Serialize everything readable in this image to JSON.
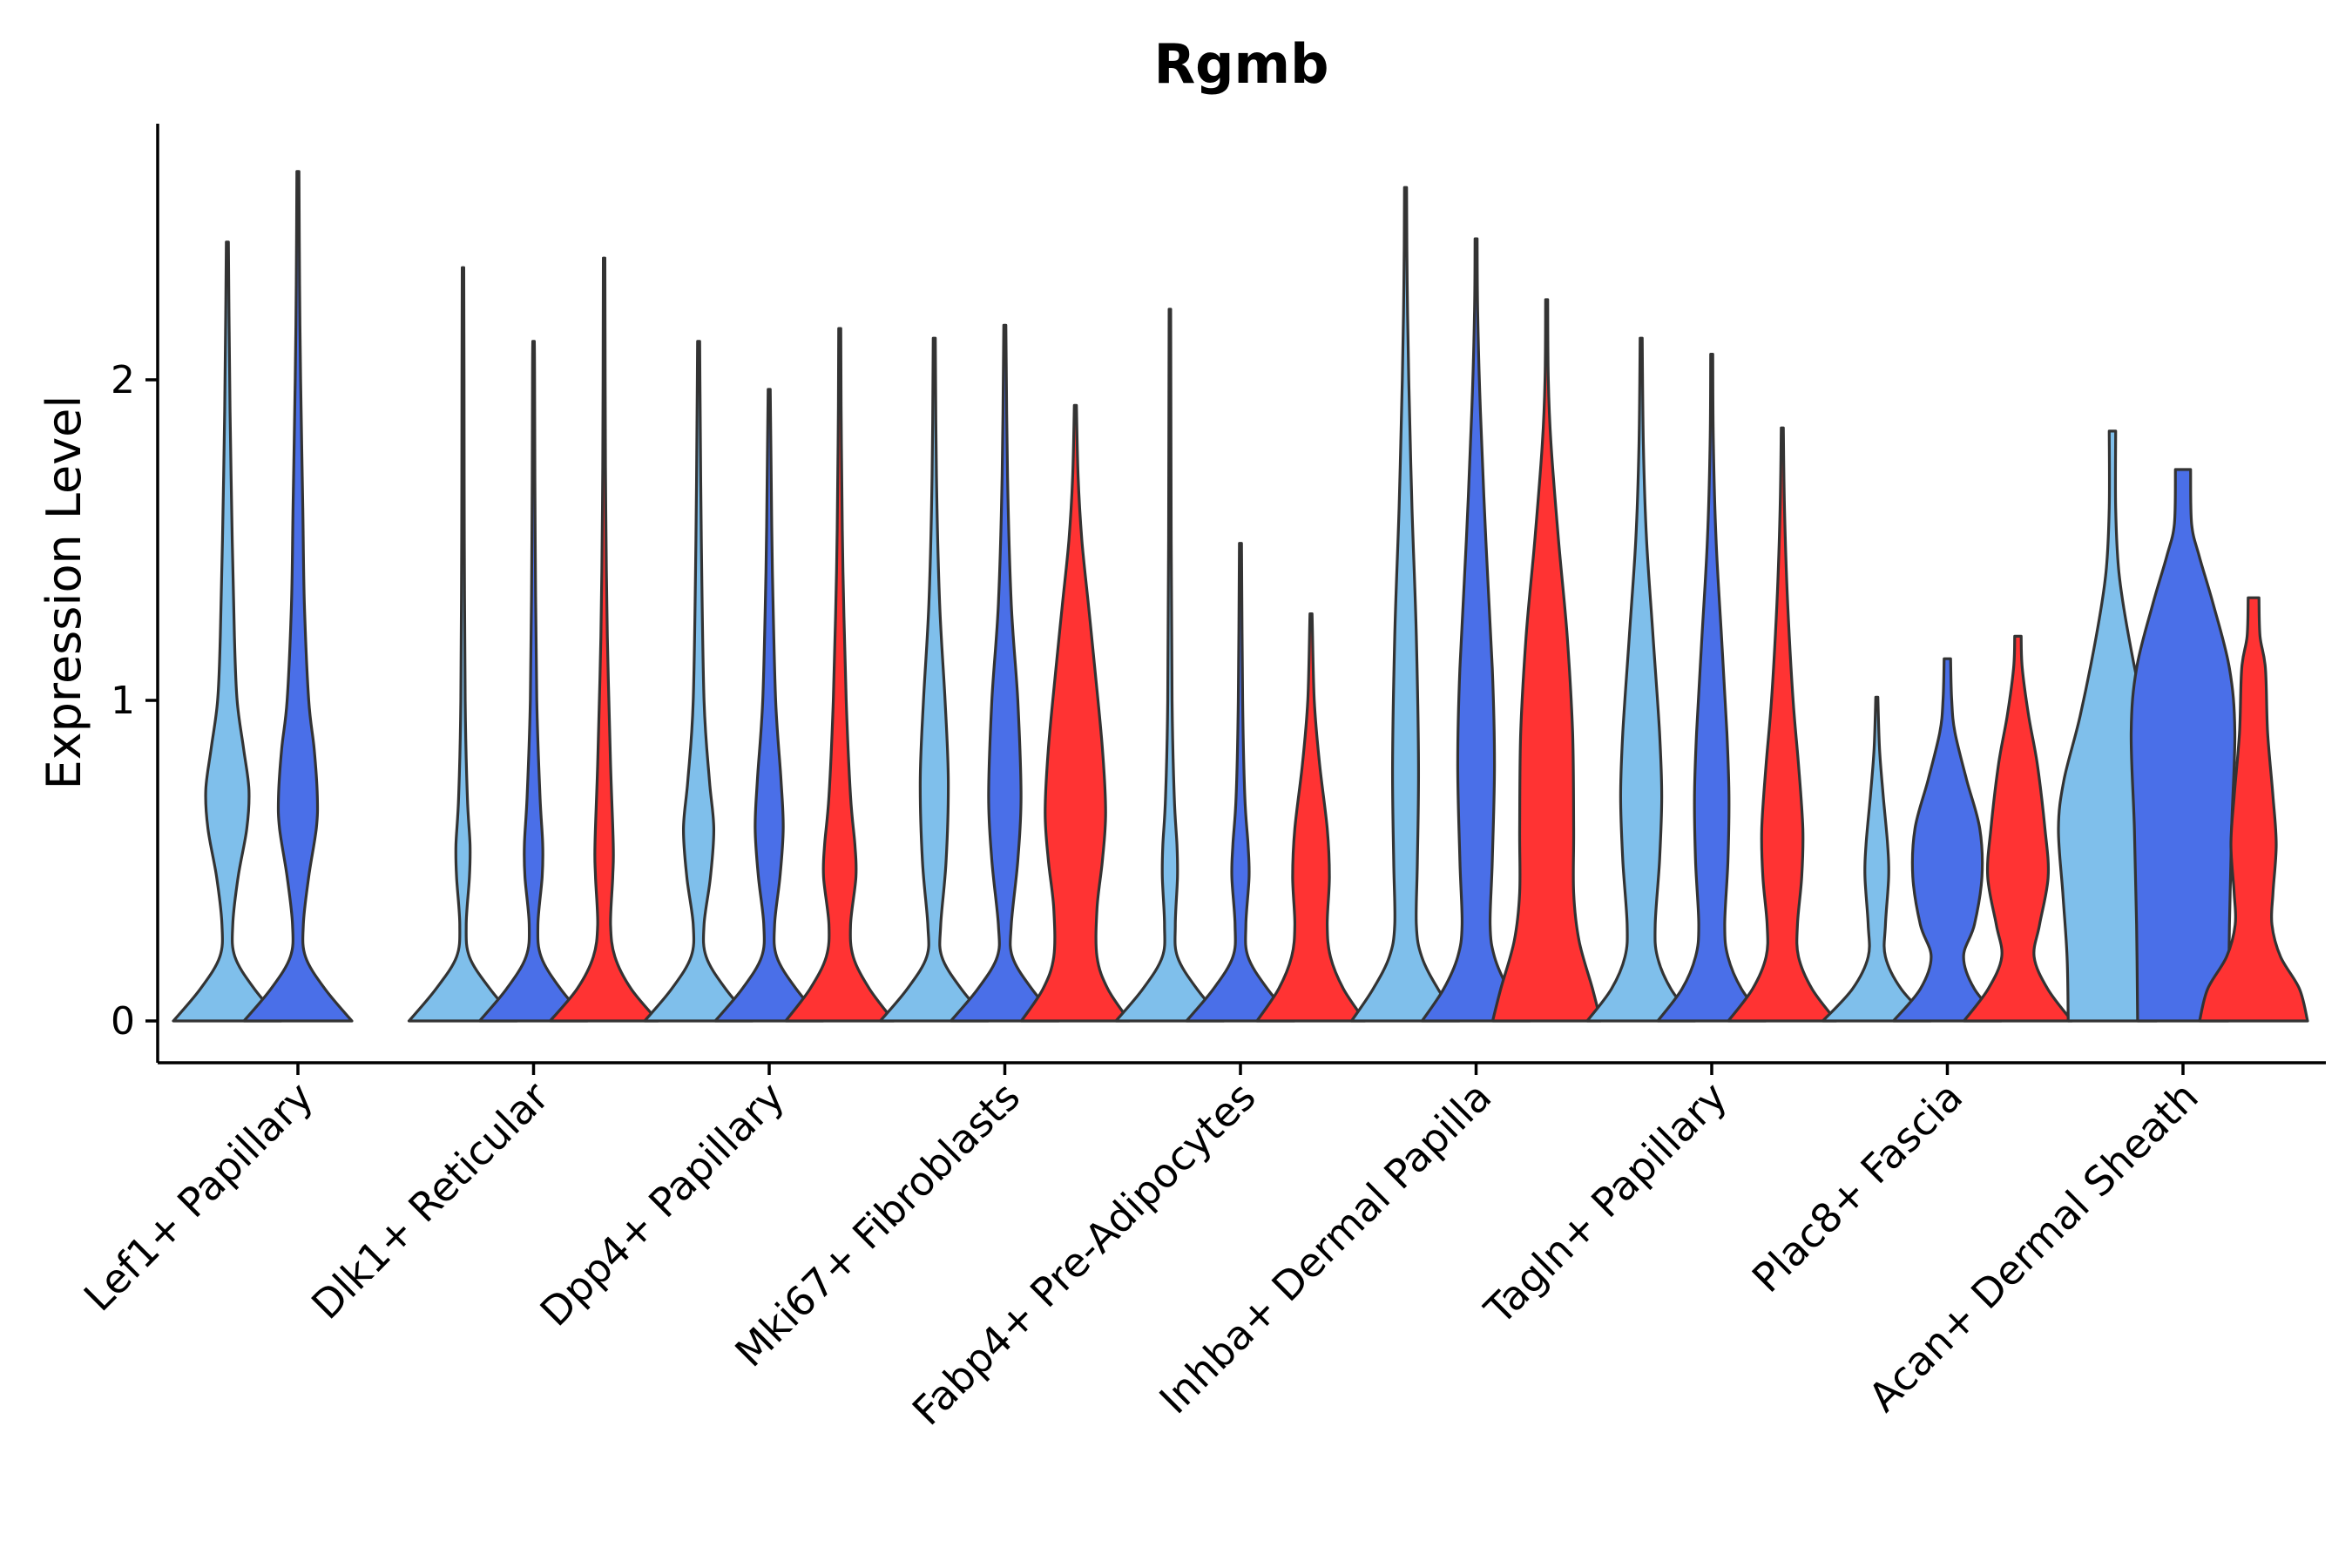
{
  "chart_data": {
    "type": "violin",
    "title": "Rgmb",
    "xlabel": "",
    "ylabel": "Expression Level",
    "ylim": [
      -0.13,
      2.8
    ],
    "yticks": [
      0,
      1,
      2
    ],
    "grid": false,
    "legend": "none",
    "groups": [
      "group1",
      "group2",
      "group3"
    ],
    "group_colors": [
      "#7fbfeb",
      "#4a6fe8",
      "#ff3333"
    ],
    "categories": [
      "Lef1+ Papillary",
      "Dlk1+ Reticular",
      "Dpp4+ Papillary",
      "Mki67+ Fibroblasts",
      "Fabp4+ Pre-Adipocytes",
      "Inhba+ Dermal Papilla",
      "Tagln+ Papillary",
      "Plac8+ Fascia",
      "Acan+ Dermal Sheath"
    ],
    "violins": [
      {
        "category": 0,
        "group": 0,
        "max": 2.43,
        "profile": [
          [
            0,
            1
          ],
          [
            0.1,
            0.5
          ],
          [
            0.2,
            0.14
          ],
          [
            0.3,
            0.1
          ],
          [
            0.45,
            0.2
          ],
          [
            0.6,
            0.36
          ],
          [
            0.72,
            0.4
          ],
          [
            0.85,
            0.3
          ],
          [
            1.0,
            0.18
          ],
          [
            1.2,
            0.13
          ],
          [
            1.5,
            0.09
          ],
          [
            1.9,
            0.05
          ],
          [
            2.2,
            0.03
          ],
          [
            2.43,
            0.02
          ]
        ]
      },
      {
        "category": 0,
        "group": 1,
        "max": 2.65,
        "profile": [
          [
            0,
            1
          ],
          [
            0.1,
            0.5
          ],
          [
            0.2,
            0.14
          ],
          [
            0.3,
            0.1
          ],
          [
            0.45,
            0.2
          ],
          [
            0.6,
            0.34
          ],
          [
            0.7,
            0.36
          ],
          [
            0.85,
            0.3
          ],
          [
            1.0,
            0.2
          ],
          [
            1.3,
            0.12
          ],
          [
            1.6,
            0.09
          ],
          [
            2.0,
            0.05
          ],
          [
            2.3,
            0.03
          ],
          [
            2.65,
            0.02
          ]
        ]
      },
      {
        "category": 1,
        "group": 0,
        "max": 2.35,
        "profile": [
          [
            0,
            1
          ],
          [
            0.1,
            0.5
          ],
          [
            0.2,
            0.12
          ],
          [
            0.3,
            0.06
          ],
          [
            0.45,
            0.12
          ],
          [
            0.55,
            0.13
          ],
          [
            0.7,
            0.08
          ],
          [
            1.0,
            0.04
          ],
          [
            1.5,
            0.025
          ],
          [
            2.0,
            0.02
          ],
          [
            2.35,
            0.015
          ]
        ]
      },
      {
        "category": 1,
        "group": 1,
        "max": 2.12,
        "profile": [
          [
            0,
            1
          ],
          [
            0.1,
            0.5
          ],
          [
            0.2,
            0.14
          ],
          [
            0.3,
            0.08
          ],
          [
            0.45,
            0.16
          ],
          [
            0.55,
            0.17
          ],
          [
            0.7,
            0.12
          ],
          [
            1.0,
            0.06
          ],
          [
            1.5,
            0.03
          ],
          [
            2.0,
            0.02
          ],
          [
            2.12,
            0.015
          ]
        ]
      },
      {
        "category": 1,
        "group": 2,
        "max": 2.38,
        "profile": [
          [
            0,
            1
          ],
          [
            0.1,
            0.5
          ],
          [
            0.2,
            0.2
          ],
          [
            0.3,
            0.12
          ],
          [
            0.45,
            0.16
          ],
          [
            0.55,
            0.17
          ],
          [
            0.8,
            0.12
          ],
          [
            1.2,
            0.06
          ],
          [
            1.6,
            0.03
          ],
          [
            2.0,
            0.02
          ],
          [
            2.38,
            0.015
          ]
        ]
      },
      {
        "category": 2,
        "group": 0,
        "max": 2.12,
        "profile": [
          [
            0,
            1
          ],
          [
            0.1,
            0.5
          ],
          [
            0.2,
            0.14
          ],
          [
            0.3,
            0.1
          ],
          [
            0.45,
            0.22
          ],
          [
            0.6,
            0.28
          ],
          [
            0.75,
            0.2
          ],
          [
            1.0,
            0.1
          ],
          [
            1.5,
            0.05
          ],
          [
            2.0,
            0.025
          ],
          [
            2.12,
            0.02
          ]
        ]
      },
      {
        "category": 2,
        "group": 1,
        "max": 1.97,
        "profile": [
          [
            0,
            1
          ],
          [
            0.1,
            0.5
          ],
          [
            0.2,
            0.14
          ],
          [
            0.3,
            0.1
          ],
          [
            0.45,
            0.2
          ],
          [
            0.6,
            0.26
          ],
          [
            0.75,
            0.22
          ],
          [
            1.0,
            0.12
          ],
          [
            1.4,
            0.06
          ],
          [
            1.8,
            0.03
          ],
          [
            1.97,
            0.02
          ]
        ]
      },
      {
        "category": 2,
        "group": 2,
        "max": 2.16,
        "profile": [
          [
            0,
            1
          ],
          [
            0.1,
            0.55
          ],
          [
            0.2,
            0.25
          ],
          [
            0.3,
            0.2
          ],
          [
            0.45,
            0.3
          ],
          [
            0.55,
            0.28
          ],
          [
            0.7,
            0.2
          ],
          [
            1.0,
            0.12
          ],
          [
            1.4,
            0.06
          ],
          [
            1.8,
            0.03
          ],
          [
            2.16,
            0.02
          ]
        ]
      },
      {
        "category": 3,
        "group": 0,
        "max": 2.13,
        "profile": [
          [
            0,
            1
          ],
          [
            0.1,
            0.5
          ],
          [
            0.2,
            0.14
          ],
          [
            0.3,
            0.12
          ],
          [
            0.5,
            0.22
          ],
          [
            0.75,
            0.26
          ],
          [
            1.0,
            0.2
          ],
          [
            1.3,
            0.1
          ],
          [
            1.7,
            0.04
          ],
          [
            2.13,
            0.02
          ]
        ]
      },
      {
        "category": 3,
        "group": 1,
        "max": 2.17,
        "profile": [
          [
            0,
            1
          ],
          [
            0.1,
            0.5
          ],
          [
            0.2,
            0.14
          ],
          [
            0.3,
            0.12
          ],
          [
            0.5,
            0.24
          ],
          [
            0.7,
            0.3
          ],
          [
            1.0,
            0.24
          ],
          [
            1.3,
            0.12
          ],
          [
            1.7,
            0.05
          ],
          [
            2.17,
            0.02
          ]
        ]
      },
      {
        "category": 3,
        "group": 2,
        "max": 1.92,
        "profile": [
          [
            0,
            1
          ],
          [
            0.1,
            0.6
          ],
          [
            0.2,
            0.4
          ],
          [
            0.35,
            0.4
          ],
          [
            0.5,
            0.5
          ],
          [
            0.65,
            0.56
          ],
          [
            0.85,
            0.5
          ],
          [
            1.1,
            0.36
          ],
          [
            1.3,
            0.24
          ],
          [
            1.5,
            0.12
          ],
          [
            1.7,
            0.05
          ],
          [
            1.92,
            0.02
          ]
        ]
      },
      {
        "category": 4,
        "group": 0,
        "max": 2.22,
        "profile": [
          [
            0,
            1
          ],
          [
            0.1,
            0.5
          ],
          [
            0.2,
            0.14
          ],
          [
            0.3,
            0.1
          ],
          [
            0.45,
            0.14
          ],
          [
            0.55,
            0.13
          ],
          [
            0.7,
            0.08
          ],
          [
            1.0,
            0.04
          ],
          [
            1.5,
            0.025
          ],
          [
            2.22,
            0.015
          ]
        ]
      },
      {
        "category": 4,
        "group": 1,
        "max": 1.49,
        "profile": [
          [
            0,
            1
          ],
          [
            0.1,
            0.5
          ],
          [
            0.2,
            0.14
          ],
          [
            0.3,
            0.1
          ],
          [
            0.45,
            0.16
          ],
          [
            0.55,
            0.14
          ],
          [
            0.7,
            0.08
          ],
          [
            1.0,
            0.04
          ],
          [
            1.49,
            0.02
          ]
        ]
      },
      {
        "category": 4,
        "group": 2,
        "max": 1.27,
        "profile": [
          [
            0,
            1
          ],
          [
            0.1,
            0.6
          ],
          [
            0.2,
            0.36
          ],
          [
            0.3,
            0.3
          ],
          [
            0.45,
            0.34
          ],
          [
            0.6,
            0.3
          ],
          [
            0.8,
            0.16
          ],
          [
            1.0,
            0.06
          ],
          [
            1.27,
            0.02
          ]
        ]
      },
      {
        "category": 5,
        "group": 0,
        "max": 2.6,
        "profile": [
          [
            0,
            1
          ],
          [
            0.1,
            0.6
          ],
          [
            0.2,
            0.3
          ],
          [
            0.3,
            0.2
          ],
          [
            0.5,
            0.22
          ],
          [
            0.8,
            0.24
          ],
          [
            1.2,
            0.2
          ],
          [
            1.6,
            0.12
          ],
          [
            2.0,
            0.06
          ],
          [
            2.3,
            0.03
          ],
          [
            2.6,
            0.02
          ]
        ]
      },
      {
        "category": 5,
        "group": 1,
        "max": 2.44,
        "profile": [
          [
            0,
            1
          ],
          [
            0.1,
            0.6
          ],
          [
            0.2,
            0.34
          ],
          [
            0.3,
            0.26
          ],
          [
            0.5,
            0.3
          ],
          [
            0.8,
            0.34
          ],
          [
            1.1,
            0.3
          ],
          [
            1.5,
            0.18
          ],
          [
            1.9,
            0.08
          ],
          [
            2.2,
            0.03
          ],
          [
            2.44,
            0.02
          ]
        ]
      },
      {
        "category": 5,
        "group": 2,
        "max": 2.25,
        "profile": [
          [
            0,
            1
          ],
          [
            0.1,
            0.85
          ],
          [
            0.25,
            0.6
          ],
          [
            0.4,
            0.5
          ],
          [
            0.6,
            0.5
          ],
          [
            0.9,
            0.48
          ],
          [
            1.2,
            0.38
          ],
          [
            1.5,
            0.22
          ],
          [
            1.8,
            0.08
          ],
          [
            2.0,
            0.03
          ],
          [
            2.25,
            0.02
          ]
        ]
      },
      {
        "category": 6,
        "group": 0,
        "max": 2.13,
        "profile": [
          [
            0,
            1
          ],
          [
            0.1,
            0.55
          ],
          [
            0.2,
            0.3
          ],
          [
            0.3,
            0.26
          ],
          [
            0.5,
            0.34
          ],
          [
            0.7,
            0.38
          ],
          [
            0.9,
            0.34
          ],
          [
            1.2,
            0.22
          ],
          [
            1.5,
            0.1
          ],
          [
            1.8,
            0.04
          ],
          [
            2.13,
            0.02
          ]
        ]
      },
      {
        "category": 6,
        "group": 1,
        "max": 2.08,
        "profile": [
          [
            0,
            1
          ],
          [
            0.1,
            0.55
          ],
          [
            0.2,
            0.3
          ],
          [
            0.3,
            0.24
          ],
          [
            0.5,
            0.3
          ],
          [
            0.7,
            0.32
          ],
          [
            0.9,
            0.28
          ],
          [
            1.2,
            0.18
          ],
          [
            1.5,
            0.08
          ],
          [
            1.8,
            0.03
          ],
          [
            2.08,
            0.02
          ]
        ]
      },
      {
        "category": 6,
        "group": 2,
        "max": 1.85,
        "profile": [
          [
            0,
            1
          ],
          [
            0.1,
            0.55
          ],
          [
            0.2,
            0.3
          ],
          [
            0.3,
            0.28
          ],
          [
            0.45,
            0.36
          ],
          [
            0.6,
            0.38
          ],
          [
            0.8,
            0.3
          ],
          [
            1.0,
            0.2
          ],
          [
            1.3,
            0.1
          ],
          [
            1.6,
            0.04
          ],
          [
            1.85,
            0.02
          ]
        ]
      },
      {
        "category": 7,
        "group": 0,
        "max": 1.01,
        "profile": [
          [
            0,
            1
          ],
          [
            0.1,
            0.45
          ],
          [
            0.2,
            0.16
          ],
          [
            0.3,
            0.16
          ],
          [
            0.45,
            0.22
          ],
          [
            0.55,
            0.2
          ],
          [
            0.7,
            0.12
          ],
          [
            0.85,
            0.05
          ],
          [
            1.01,
            0.02
          ]
        ]
      },
      {
        "category": 7,
        "group": 1,
        "max": 1.13,
        "profile": [
          [
            0,
            1
          ],
          [
            0.1,
            0.5
          ],
          [
            0.2,
            0.3
          ],
          [
            0.3,
            0.5
          ],
          [
            0.45,
            0.64
          ],
          [
            0.6,
            0.6
          ],
          [
            0.75,
            0.36
          ],
          [
            0.9,
            0.14
          ],
          [
            1.0,
            0.08
          ],
          [
            1.13,
            0.06
          ]
        ]
      },
      {
        "category": 7,
        "group": 2,
        "max": 1.2,
        "profile": [
          [
            0,
            1
          ],
          [
            0.1,
            0.55
          ],
          [
            0.2,
            0.3
          ],
          [
            0.3,
            0.4
          ],
          [
            0.45,
            0.56
          ],
          [
            0.6,
            0.5
          ],
          [
            0.8,
            0.36
          ],
          [
            0.95,
            0.2
          ],
          [
            1.1,
            0.08
          ],
          [
            1.2,
            0.06
          ]
        ]
      },
      {
        "category": 8,
        "group": 0,
        "max": 1.84,
        "profile": [
          [
            0,
            0.82
          ],
          [
            0.2,
            0.84
          ],
          [
            0.4,
            0.92
          ],
          [
            0.6,
            1.0
          ],
          [
            0.75,
            0.9
          ],
          [
            0.95,
            0.6
          ],
          [
            1.2,
            0.3
          ],
          [
            1.4,
            0.12
          ],
          [
            1.6,
            0.06
          ],
          [
            1.84,
            0.06
          ]
        ]
      },
      {
        "category": 8,
        "group": 1,
        "max": 1.72,
        "profile": [
          [
            0,
            0.84
          ],
          [
            0.3,
            0.86
          ],
          [
            0.6,
            0.9
          ],
          [
            0.9,
            0.96
          ],
          [
            1.1,
            0.86
          ],
          [
            1.3,
            0.56
          ],
          [
            1.45,
            0.3
          ],
          [
            1.55,
            0.16
          ],
          [
            1.72,
            0.14
          ]
        ]
      },
      {
        "category": 8,
        "group": 2,
        "max": 1.32,
        "profile": [
          [
            0,
            1
          ],
          [
            0.1,
            0.85
          ],
          [
            0.2,
            0.5
          ],
          [
            0.3,
            0.34
          ],
          [
            0.4,
            0.36
          ],
          [
            0.55,
            0.42
          ],
          [
            0.7,
            0.36
          ],
          [
            0.9,
            0.26
          ],
          [
            1.1,
            0.22
          ],
          [
            1.2,
            0.12
          ],
          [
            1.32,
            0.1
          ]
        ]
      }
    ]
  }
}
